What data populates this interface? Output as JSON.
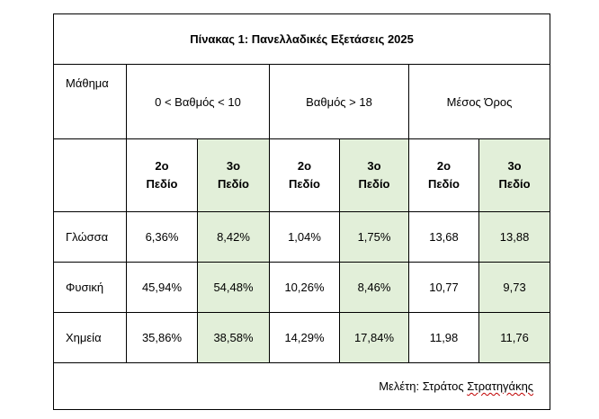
{
  "table": {
    "title": "Πίνακας 1: Πανελλαδικές Εξετάσεις 2025",
    "subject_header": "Μάθημα",
    "groups": [
      "0 < Βαθμός < 10",
      "Βαθμός > 18",
      "Μέσος Όρος"
    ],
    "field_line1": [
      "2ο",
      "3ο",
      "2ο",
      "3ο",
      "2ο",
      "3ο"
    ],
    "field_line2": [
      "Πεδίο",
      "Πεδίο",
      "Πεδίο",
      "Πεδίο",
      "Πεδίο",
      "Πεδίο"
    ],
    "rows": [
      {
        "subject": "Γλώσσα",
        "values": [
          "6,36%",
          "8,42%",
          "1,04%",
          "1,75%",
          "13,68",
          "13,88"
        ]
      },
      {
        "subject": "Φυσική",
        "values": [
          "45,94%",
          "54,48%",
          "10,26%",
          "8,46%",
          "10,77",
          "9,73"
        ]
      },
      {
        "subject": "Χημεία",
        "values": [
          "35,86%",
          "38,58%",
          "14,29%",
          "17,84%",
          "11,98",
          "11,76"
        ]
      }
    ],
    "footer_prefix": "Μελέτη: Στράτος ",
    "footer_name": "Στρατηγάκης",
    "highlight_color": "#e2efd9"
  }
}
